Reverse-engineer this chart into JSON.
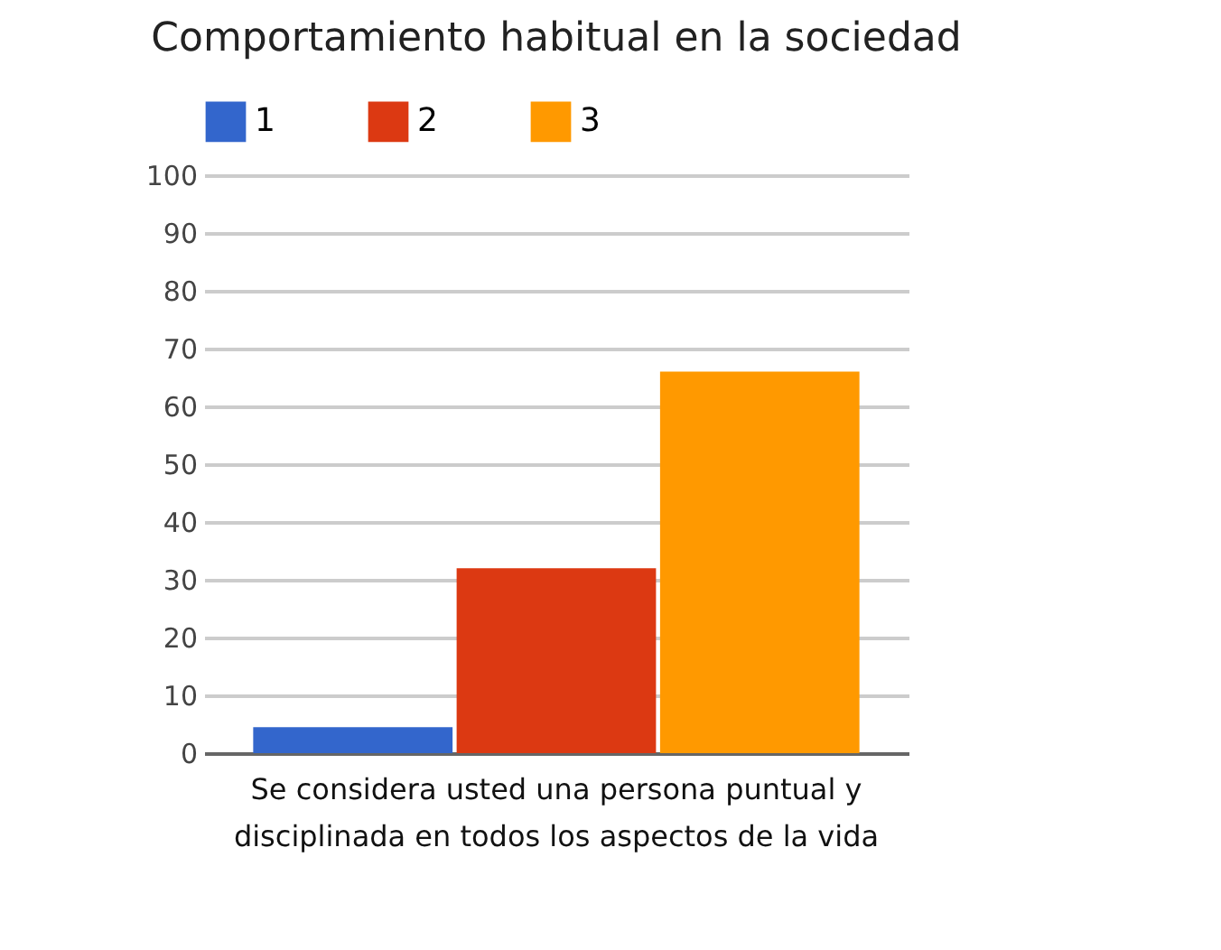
{
  "chart_data": {
    "type": "bar",
    "title": "Comportamiento habitual en la sociedad",
    "categories": [
      "Se considera usted una persona puntual y disciplinada en todos los aspectos de la vida"
    ],
    "series": [
      {
        "name": "1",
        "color": "#3366cc",
        "values": [
          4.5
        ]
      },
      {
        "name": "2",
        "color": "#dc3912",
        "values": [
          32
        ]
      },
      {
        "name": "3",
        "color": "#ff9900",
        "values": [
          66
        ]
      }
    ],
    "ylim": [
      0,
      100
    ],
    "yticks": [
      0,
      10,
      20,
      30,
      40,
      50,
      60,
      70,
      80,
      90,
      100
    ],
    "grid": true,
    "legend": "top"
  }
}
